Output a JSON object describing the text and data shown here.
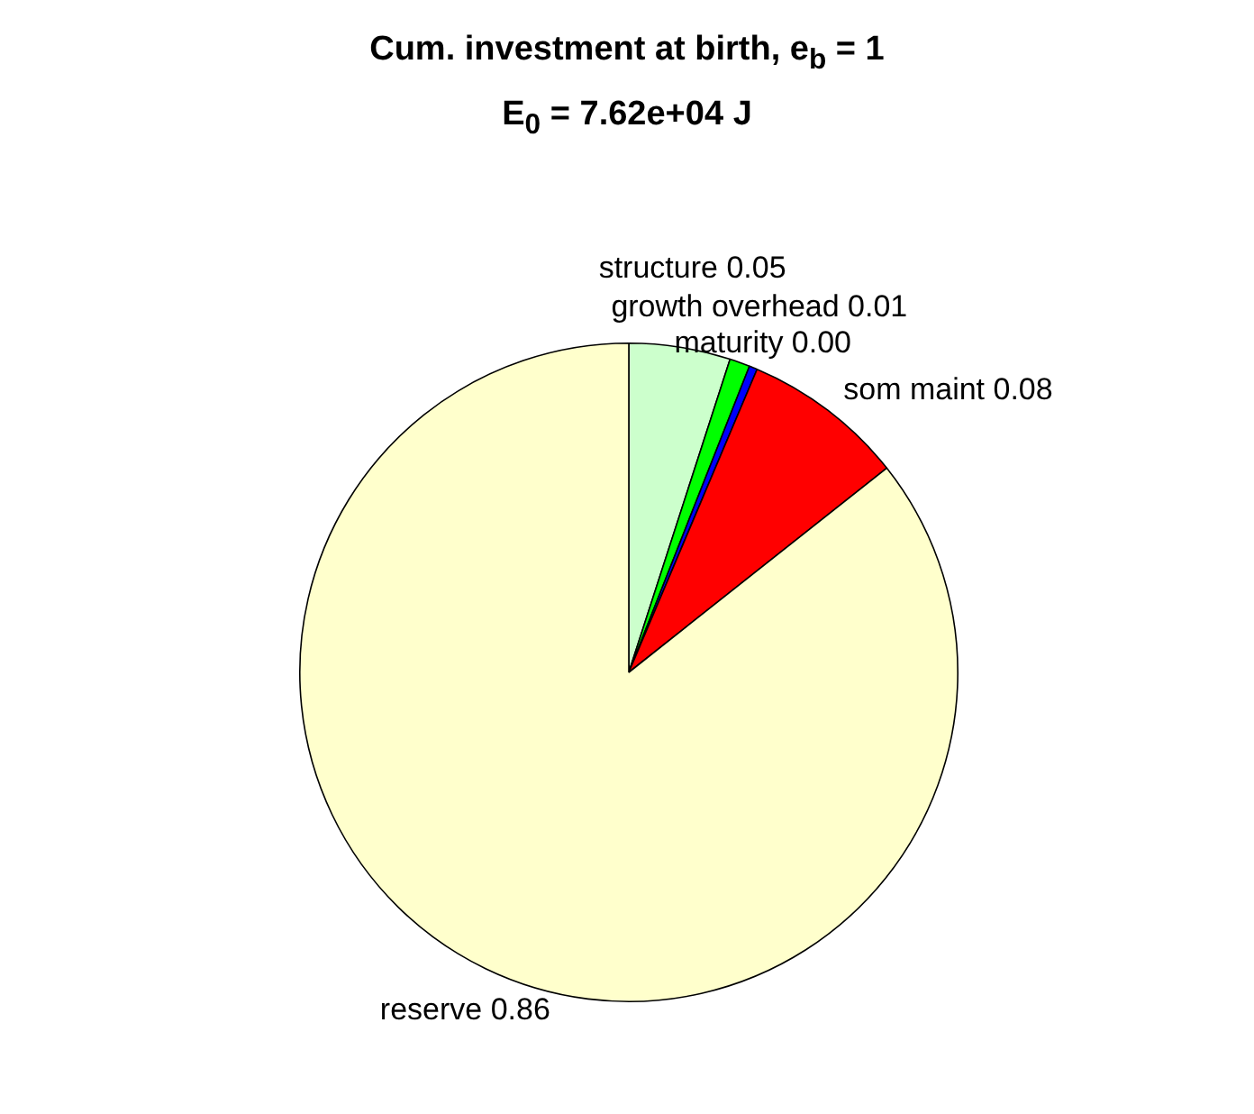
{
  "chart_data": {
    "type": "pie",
    "title": "Cum. investment at birth, e$_{b}$ = 1",
    "subtitle": "E$_{0}$ = 7.62e+04 J",
    "categories": [
      "structure",
      "growth overhead",
      "maturity",
      "som maint",
      "reserve"
    ],
    "values": [
      0.05,
      0.01,
      0.004,
      0.08,
      0.86
    ],
    "value_labels": [
      "0.05",
      "0.01",
      "0.00",
      "0.08",
      "0.86"
    ],
    "colors": [
      "#ccffcc",
      "#00ff00",
      "#0000ff",
      "#ff0000",
      "#ffffcc"
    ],
    "legend": false
  }
}
